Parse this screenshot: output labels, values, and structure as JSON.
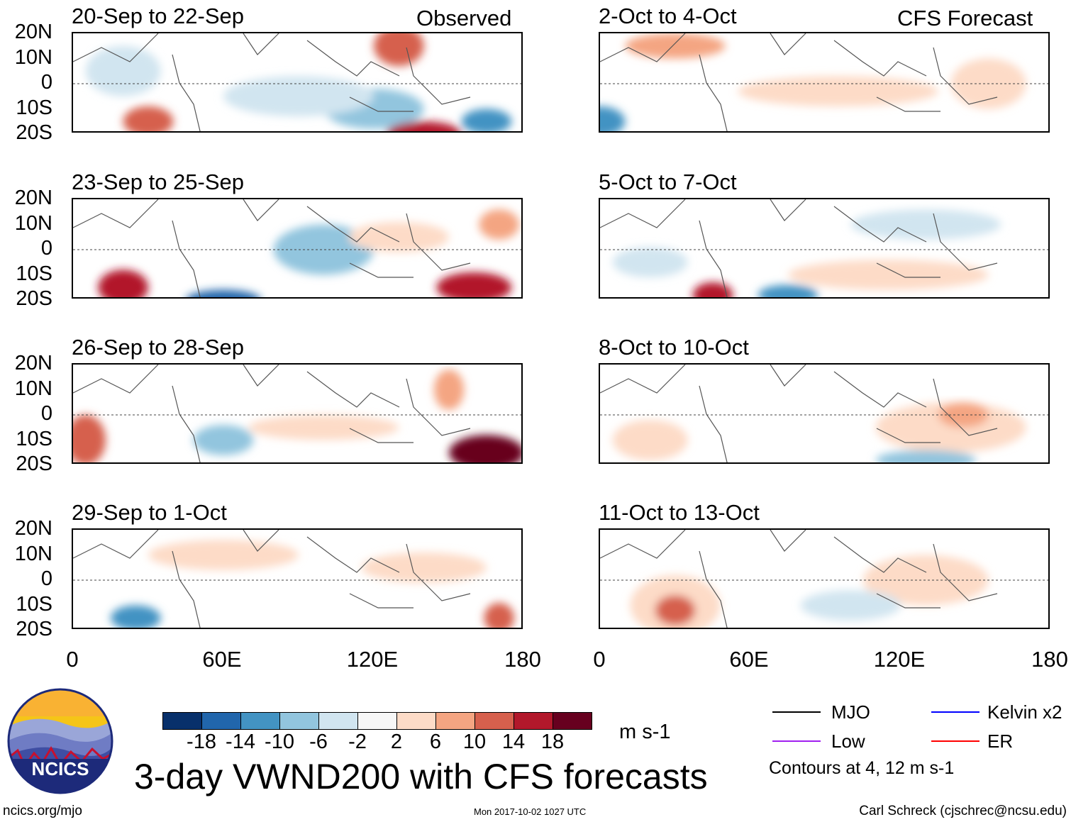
{
  "header": {
    "left_label": "Observed",
    "right_label": "CFS Forecast"
  },
  "panels": {
    "observed": [
      "20-Sep to 22-Sep",
      "23-Sep to 25-Sep",
      "26-Sep to 28-Sep",
      "29-Sep to 1-Oct"
    ],
    "forecast": [
      "2-Oct to 4-Oct",
      "5-Oct to 7-Oct",
      "8-Oct to 10-Oct",
      "11-Oct to 13-Oct"
    ]
  },
  "axes": {
    "lat_ticks": [
      "20N",
      "10N",
      "0",
      "10S",
      "20S"
    ],
    "lon_ticks": [
      "0",
      "60E",
      "120E",
      "180"
    ]
  },
  "colorbar": {
    "colors": [
      "#08306b",
      "#2166ac",
      "#4393c3",
      "#92c5de",
      "#d1e5f0",
      "#f7f7f7",
      "#fddbc7",
      "#f4a582",
      "#d6604d",
      "#b2182b",
      "#67001f"
    ],
    "labels": [
      "-18",
      "-14",
      "-10",
      "-6",
      "-2",
      "2",
      "6",
      "10",
      "14",
      "18"
    ],
    "units": "m s-1"
  },
  "legend": {
    "items": [
      {
        "label": "MJO",
        "color": "#000000"
      },
      {
        "label": "Kelvin x2",
        "color": "#0000ff"
      },
      {
        "label": "Low",
        "color": "#a020f0"
      },
      {
        "label": "ER",
        "color": "#ff0000"
      }
    ],
    "contours": "Contours at 4, 12 m s-1"
  },
  "title": "3-day VWND200 with CFS forecasts",
  "logo": {
    "text": "NCICS"
  },
  "footer": {
    "url": "ncics.org/mjo",
    "timestamp": "Mon 2017-10-02 1027 UTC",
    "credit": "Carl Schreck (cjschrec@ncsu.edu)"
  }
}
